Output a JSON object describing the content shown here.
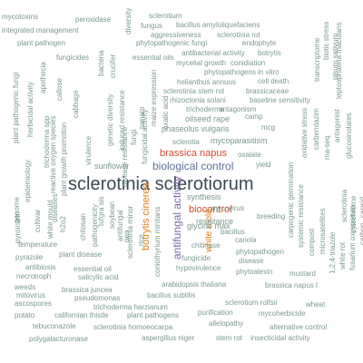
{
  "colors": {
    "gray": "#7a9a8c",
    "blue": "#5c6f9b",
    "green": "#49a06a",
    "purple": "#7b66a8",
    "orange": "#e07f14",
    "red": "#d94a2c",
    "dark": "#3a4a52"
  },
  "words": [
    {
      "text": "sclerotinia sclerotiorum",
      "color": "dark"
    },
    {
      "text": "biological control",
      "color": "blue"
    },
    {
      "text": "brassica napus",
      "color": "red"
    },
    {
      "text": "biocontrol",
      "color": "red"
    },
    {
      "text": "botrytis cinerea",
      "color": "orange"
    },
    {
      "text": "antifungal activity",
      "color": "purple"
    },
    {
      "text": "white mold",
      "color": "orange"
    },
    {
      "text": "mycotoxins",
      "color": "gray"
    },
    {
      "text": "peroxidase",
      "color": "gray"
    },
    {
      "text": "diversity",
      "color": "gray"
    },
    {
      "text": "sclerotium",
      "color": "gray"
    },
    {
      "text": "integrated management",
      "color": "gray"
    },
    {
      "text": "fungus",
      "color": "gray"
    },
    {
      "text": "bacillus amyloliquefaciens",
      "color": "gray"
    },
    {
      "text": "aggressiveness",
      "color": "gray"
    },
    {
      "text": "sclerotinia rot",
      "color": "gray"
    },
    {
      "text": "plant pathogen",
      "color": "gray"
    },
    {
      "text": "phytopathogenic fungi",
      "color": "gray"
    },
    {
      "text": "endophyte",
      "color": "gray"
    },
    {
      "text": "fungicides",
      "color": "gray"
    },
    {
      "text": "essential oils",
      "color": "gray"
    },
    {
      "text": "antibacterial activity",
      "color": "gray"
    },
    {
      "text": "botrytis",
      "color": "gray"
    },
    {
      "text": "mycelial growth",
      "color": "gray"
    },
    {
      "text": "conidiation",
      "color": "gray"
    },
    {
      "text": "in vitro",
      "color": "gray"
    },
    {
      "text": "phytopathogens",
      "color": "gray"
    },
    {
      "text": "helianthus annuus",
      "color": "gray"
    },
    {
      "text": "cell death",
      "color": "gray"
    },
    {
      "text": "sclerotinia stem rot",
      "color": "gray"
    },
    {
      "text": "brassicaceae",
      "color": "gray"
    },
    {
      "text": "rhizoctonia solani",
      "color": "gray"
    },
    {
      "text": "baseline sensitivity",
      "color": "gray"
    },
    {
      "text": "trichoderma",
      "color": "gray"
    },
    {
      "text": "antagonism",
      "color": "gray"
    },
    {
      "text": "camp",
      "color": "gray"
    },
    {
      "text": "oilseed rape",
      "color": "gray"
    },
    {
      "text": "mcg",
      "color": "gray"
    },
    {
      "text": "phaseolus vulgaris",
      "color": "gray"
    },
    {
      "text": "sclerotia",
      "color": "gray"
    },
    {
      "text": "mycoparasitism",
      "color": "gray"
    },
    {
      "text": "oxalate",
      "color": "gray"
    },
    {
      "text": "yield",
      "color": "gray"
    },
    {
      "text": "sunflower",
      "color": "gray"
    },
    {
      "text": "synthesis",
      "color": "gray"
    },
    {
      "text": "mycovirus",
      "color": "gray"
    },
    {
      "text": "breeding",
      "color": "gray"
    },
    {
      "text": "glycine max",
      "color": "gray"
    },
    {
      "text": "resistance",
      "color": "gray"
    },
    {
      "text": "bacillus",
      "color": "gray"
    },
    {
      "text": "canola",
      "color": "gray"
    },
    {
      "text": "chitinase",
      "color": "gray"
    },
    {
      "text": "phytopathogen",
      "color": "gray"
    },
    {
      "text": "fungicide",
      "color": "gray"
    },
    {
      "text": "disease",
      "color": "gray"
    },
    {
      "text": "hypovirulence",
      "color": "gray"
    },
    {
      "text": "phytoalexin",
      "color": "gray"
    },
    {
      "text": "mustard",
      "color": "gray"
    },
    {
      "text": "temperature",
      "color": "gray"
    },
    {
      "text": "pyrazole",
      "color": "gray"
    },
    {
      "text": "plant disease",
      "color": "gray"
    },
    {
      "text": "antibiosis",
      "color": "gray"
    },
    {
      "text": "essential oil",
      "color": "gray"
    },
    {
      "text": "necrotroph",
      "color": "gray"
    },
    {
      "text": "salicylic acid",
      "color": "gray"
    },
    {
      "text": "weeds",
      "color": "gray"
    },
    {
      "text": "brassica juncea",
      "color": "gray"
    },
    {
      "text": "arabidopsis thaliana",
      "color": "gray"
    },
    {
      "text": "brassica napus l",
      "color": "gray"
    },
    {
      "text": "mitovirus",
      "color": "gray"
    },
    {
      "text": "pseudomonas",
      "color": "gray"
    },
    {
      "text": "bacillus subtilis",
      "color": "gray"
    },
    {
      "text": "ascospores",
      "color": "gray"
    },
    {
      "text": "trichoderma harzianum",
      "color": "gray"
    },
    {
      "text": "sclerotium rolfsii",
      "color": "gray"
    },
    {
      "text": "wheat",
      "color": "gray"
    },
    {
      "text": "potato",
      "color": "gray"
    },
    {
      "text": "californian thistle",
      "color": "gray"
    },
    {
      "text": "plant pathogens",
      "color": "gray"
    },
    {
      "text": "purification",
      "color": "gray"
    },
    {
      "text": "mycoherbicide",
      "color": "gray"
    },
    {
      "text": "allelopathy",
      "color": "gray"
    },
    {
      "text": "tebuconazole",
      "color": "gray"
    },
    {
      "text": "sclerotinia homoeocarpa",
      "color": "gray"
    },
    {
      "text": "alternative control",
      "color": "gray"
    },
    {
      "text": "polygalacturonase",
      "color": "gray"
    },
    {
      "text": "aspergillus niger",
      "color": "gray"
    },
    {
      "text": "stem rot",
      "color": "gray"
    },
    {
      "text": "insecticidal activity",
      "color": "gray"
    },
    {
      "text": "plant pathogenic fungi",
      "color": "gray"
    },
    {
      "text": "herbicidal activity",
      "color": "gray"
    },
    {
      "text": "apothecia",
      "color": "gray"
    },
    {
      "text": "bacteria",
      "color": "gray"
    },
    {
      "text": "crucifer",
      "color": "gray"
    },
    {
      "text": "callose",
      "color": "gray"
    },
    {
      "text": "cabbage",
      "color": "gray"
    },
    {
      "text": "plant growth promotion",
      "color": "gray"
    },
    {
      "text": "reactive oxygen species",
      "color": "gray"
    },
    {
      "text": "trichoderma spp",
      "color": "gray"
    },
    {
      "text": "genetic diversity",
      "color": "gray"
    },
    {
      "text": "induced resistance",
      "color": "gray"
    },
    {
      "text": "virulence",
      "color": "gray"
    },
    {
      "text": "disease resistance",
      "color": "gray"
    },
    {
      "text": "fungi",
      "color": "gray"
    },
    {
      "text": "tomato",
      "color": "gray"
    },
    {
      "text": "fungicidal activity",
      "color": "gray"
    },
    {
      "text": "maize expression",
      "color": "gray"
    },
    {
      "text": "oxalic acid",
      "color": "gray"
    },
    {
      "text": "genome",
      "color": "gray"
    },
    {
      "text": "epidemiology",
      "color": "gray"
    },
    {
      "text": "cultivar",
      "color": "gray"
    },
    {
      "text": "white mould",
      "color": "gray"
    },
    {
      "text": "chitosan",
      "color": "gray"
    },
    {
      "text": "pathogenicity",
      "color": "gray"
    },
    {
      "text": "tufgra sis",
      "color": "gray"
    },
    {
      "text": "soybean",
      "color": "gray"
    },
    {
      "text": "pea",
      "color": "gray"
    },
    {
      "text": "antifungal",
      "color": "gray"
    },
    {
      "text": "sclerotinia minor",
      "color": "gray"
    },
    {
      "text": "coniothyrium minitans",
      "color": "gray"
    },
    {
      "text": "pyroinitrin",
      "color": "gray"
    },
    {
      "text": "diseases",
      "color": "gray"
    },
    {
      "text": "h2o2",
      "color": "gray"
    },
    {
      "text": "rice",
      "color": "gray"
    },
    {
      "text": "transcriptome",
      "color": "gray"
    },
    {
      "text": "biotic stress",
      "color": "gray"
    },
    {
      "text": "pisum sativum",
      "color": "gray"
    },
    {
      "text": "leptosphaeria maculans",
      "color": "gray"
    },
    {
      "text": "oxidative stress",
      "color": "gray"
    },
    {
      "text": "carbendazim",
      "color": "gray"
    },
    {
      "text": "ma-seq",
      "color": "gray"
    },
    {
      "text": "antagonist",
      "color": "gray"
    },
    {
      "text": "glucosinolates",
      "color": "gray"
    },
    {
      "text": "carpogenic germination",
      "color": "gray"
    },
    {
      "text": "systemic resistance",
      "color": "gray"
    },
    {
      "text": "compost",
      "color": "gray"
    },
    {
      "text": "microsatellites",
      "color": "gray"
    },
    {
      "text": "1,2,4-triazole",
      "color": "gray"
    },
    {
      "text": "sclerotinia",
      "color": "gray"
    },
    {
      "text": "cytochrome",
      "color": "gray"
    },
    {
      "text": "white rot",
      "color": "gray"
    },
    {
      "text": "fusarium oxysporum",
      "color": "gray"
    },
    {
      "text": "capsid",
      "color": "gray"
    },
    {
      "text": "carbon",
      "color": "gray"
    }
  ]
}
